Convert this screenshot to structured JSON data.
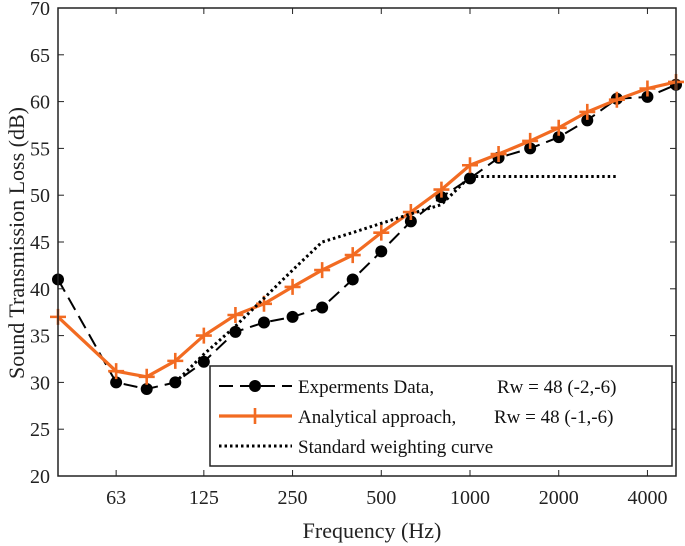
{
  "chart_data": {
    "type": "line",
    "xlabel": "Frequency (Hz)",
    "ylabel": "Sound  Transmission  Loss (dB)",
    "xscale": "log",
    "xlim": [
      40,
      5000
    ],
    "ylim": [
      20,
      70
    ],
    "yticks": [
      20,
      25,
      30,
      35,
      40,
      45,
      50,
      55,
      60,
      65,
      70
    ],
    "xticks": [
      63,
      125,
      250,
      500,
      1000,
      2000,
      4000
    ],
    "xtick_labels": [
      "63",
      "125",
      "250",
      "500",
      "1000",
      "2000",
      "4000"
    ],
    "grid": false,
    "legend_position": "bottom-right",
    "series": [
      {
        "name": "Experments Data,",
        "legend_suffix": "Rw = 48 (-2,-6)",
        "style": "dashed",
        "marker": "circle",
        "color": "#000000",
        "x": [
          40,
          63,
          80,
          100,
          125,
          160,
          200,
          250,
          315,
          400,
          500,
          630,
          800,
          1000,
          1250,
          1600,
          2000,
          2500,
          3150,
          4000,
          5000
        ],
        "values": [
          41,
          30,
          29.3,
          30,
          32.2,
          35.4,
          36.4,
          37,
          38,
          41,
          44,
          47.2,
          49.8,
          51.8,
          54,
          55,
          56.2,
          58,
          60.3,
          60.5,
          61.8
        ]
      },
      {
        "name": "Analytical approach,",
        "legend_suffix": "Rw = 48 (-1,-6)",
        "style": "solid",
        "marker": "plus",
        "color": "#f26b22",
        "x": [
          40,
          63,
          80,
          100,
          125,
          160,
          200,
          250,
          315,
          400,
          500,
          630,
          800,
          1000,
          1250,
          1600,
          2000,
          2500,
          3150,
          4000,
          5000
        ],
        "values": [
          37,
          31.2,
          30.6,
          32.3,
          35,
          37.2,
          38.4,
          40.2,
          42,
          43.6,
          46,
          48.2,
          50.6,
          53.2,
          54.4,
          55.8,
          57.2,
          58.9,
          60.2,
          61.4,
          62.1
        ]
      },
      {
        "name": "Standard weighting curve",
        "legend_suffix": "",
        "style": "dotted",
        "marker": "none",
        "color": "#000000",
        "x": [
          100,
          125,
          160,
          200,
          250,
          315,
          400,
          500,
          630,
          800,
          1000,
          1250,
          1600,
          2000,
          2500,
          3150
        ],
        "values": [
          30,
          33,
          36,
          39,
          42,
          45,
          46,
          47,
          48,
          49,
          52,
          52,
          52,
          52,
          52,
          52
        ]
      }
    ]
  }
}
